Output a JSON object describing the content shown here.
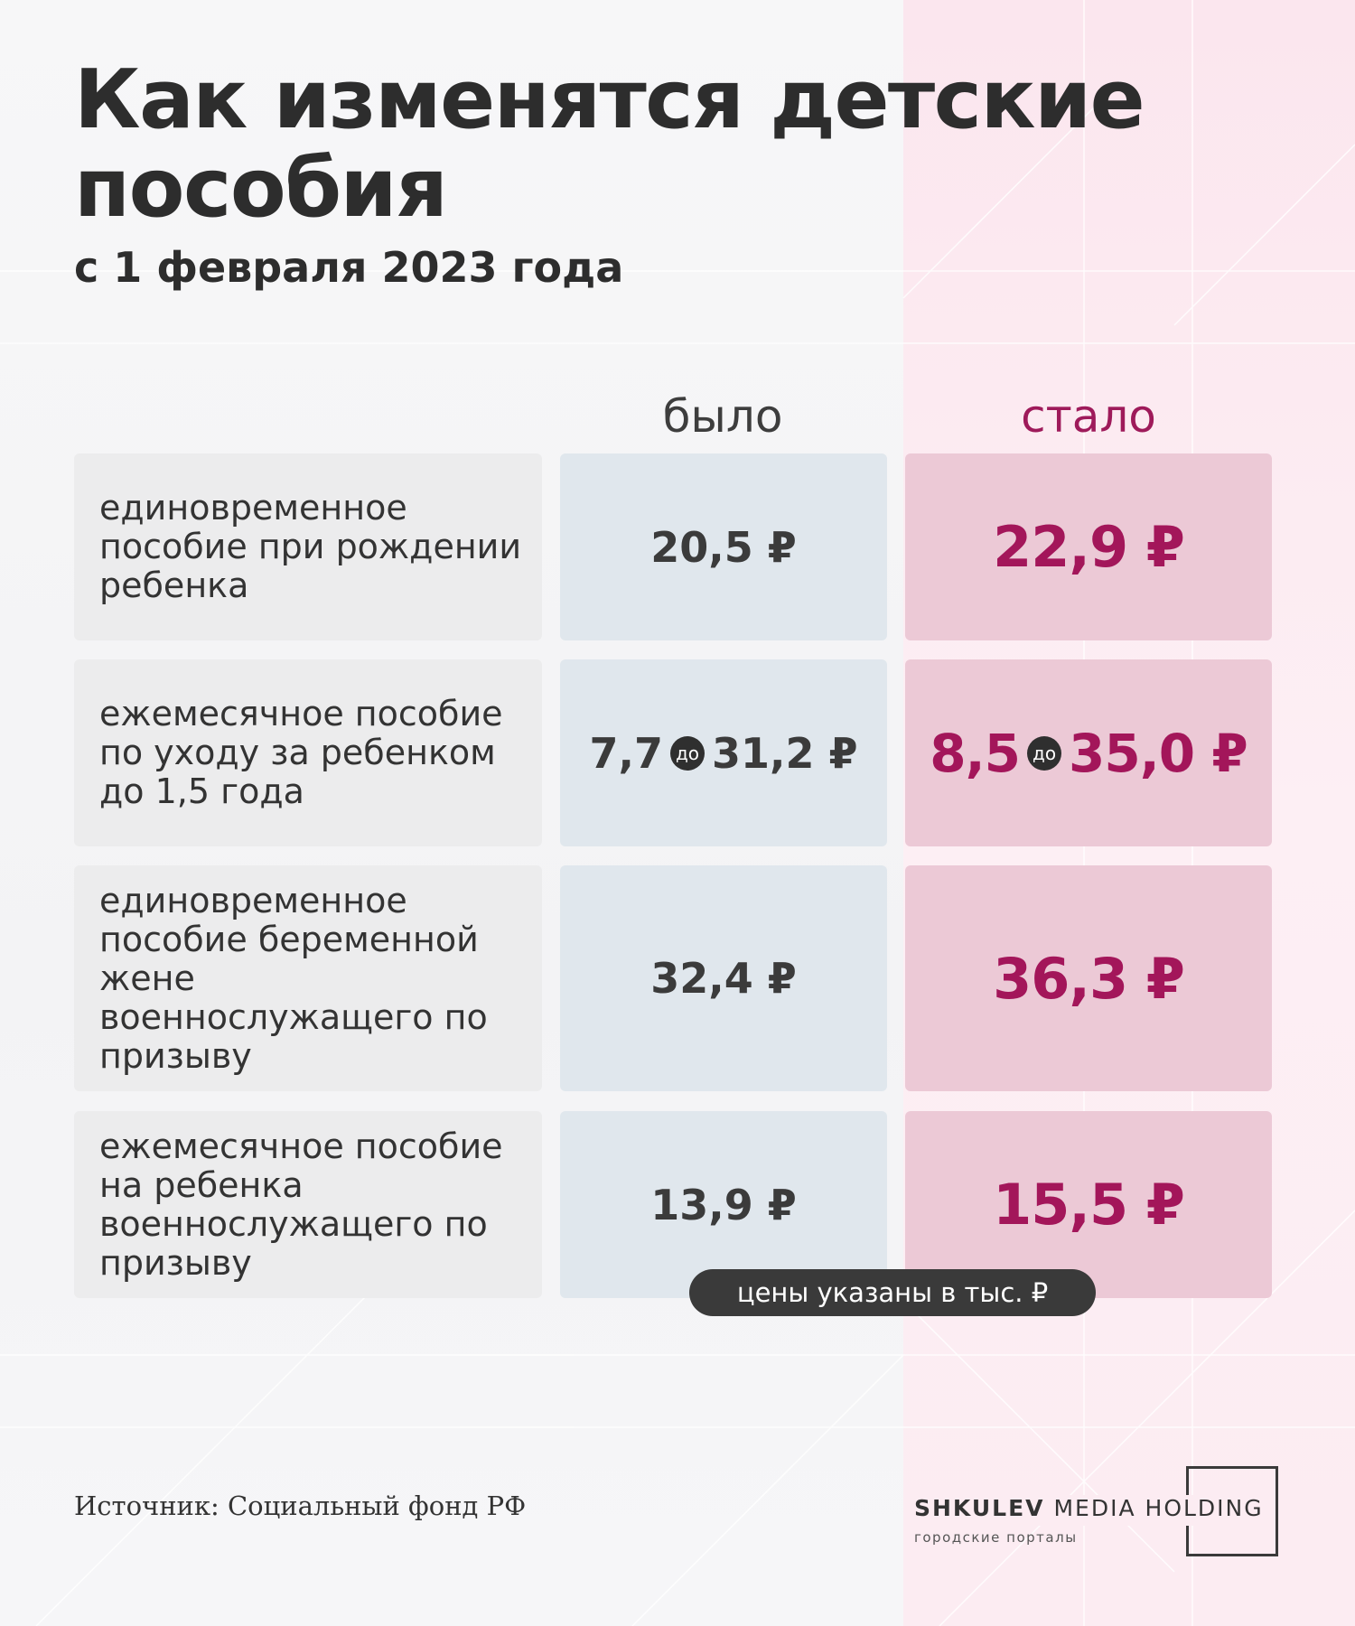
{
  "header": {
    "title": "Как изменятся детские пособия",
    "subtitle": "с 1 февраля 2023 года"
  },
  "columns": {
    "old": "было",
    "new": "стало"
  },
  "rows": [
    {
      "label": "единовременное пособие при рождении ребенка",
      "old": "20,5 ₽",
      "new": "22,9 ₽"
    },
    {
      "label": "ежемесячное пособие по уходу за ребенком до 1,5 года",
      "old_from": "7,7",
      "old_to": "31,2 ₽",
      "new_from": "8,5",
      "new_to": "35,0 ₽",
      "range_word": "до"
    },
    {
      "label": "единовременное пособие беременной жене военнослужащего по призыву",
      "old": "32,4 ₽",
      "new": "36,3 ₽"
    },
    {
      "label": "ежемесячное пособие на ребенка военнослужащего по призыву",
      "old": "13,9 ₽",
      "new": "15,5 ₽"
    }
  ],
  "note": "цены указаны в тыс.  ₽",
  "footer": {
    "source": "Источник: Социальный фонд РФ",
    "logo_bold": "SHKULEV",
    "logo_rest": " MEDIA HOLDING",
    "logo_sub": "городские порталы"
  },
  "colors": {
    "accent": "#a3165a",
    "old_cell": "#e0e7ed",
    "new_cell": "#ecc9d6",
    "label_cell": "#ececed"
  }
}
